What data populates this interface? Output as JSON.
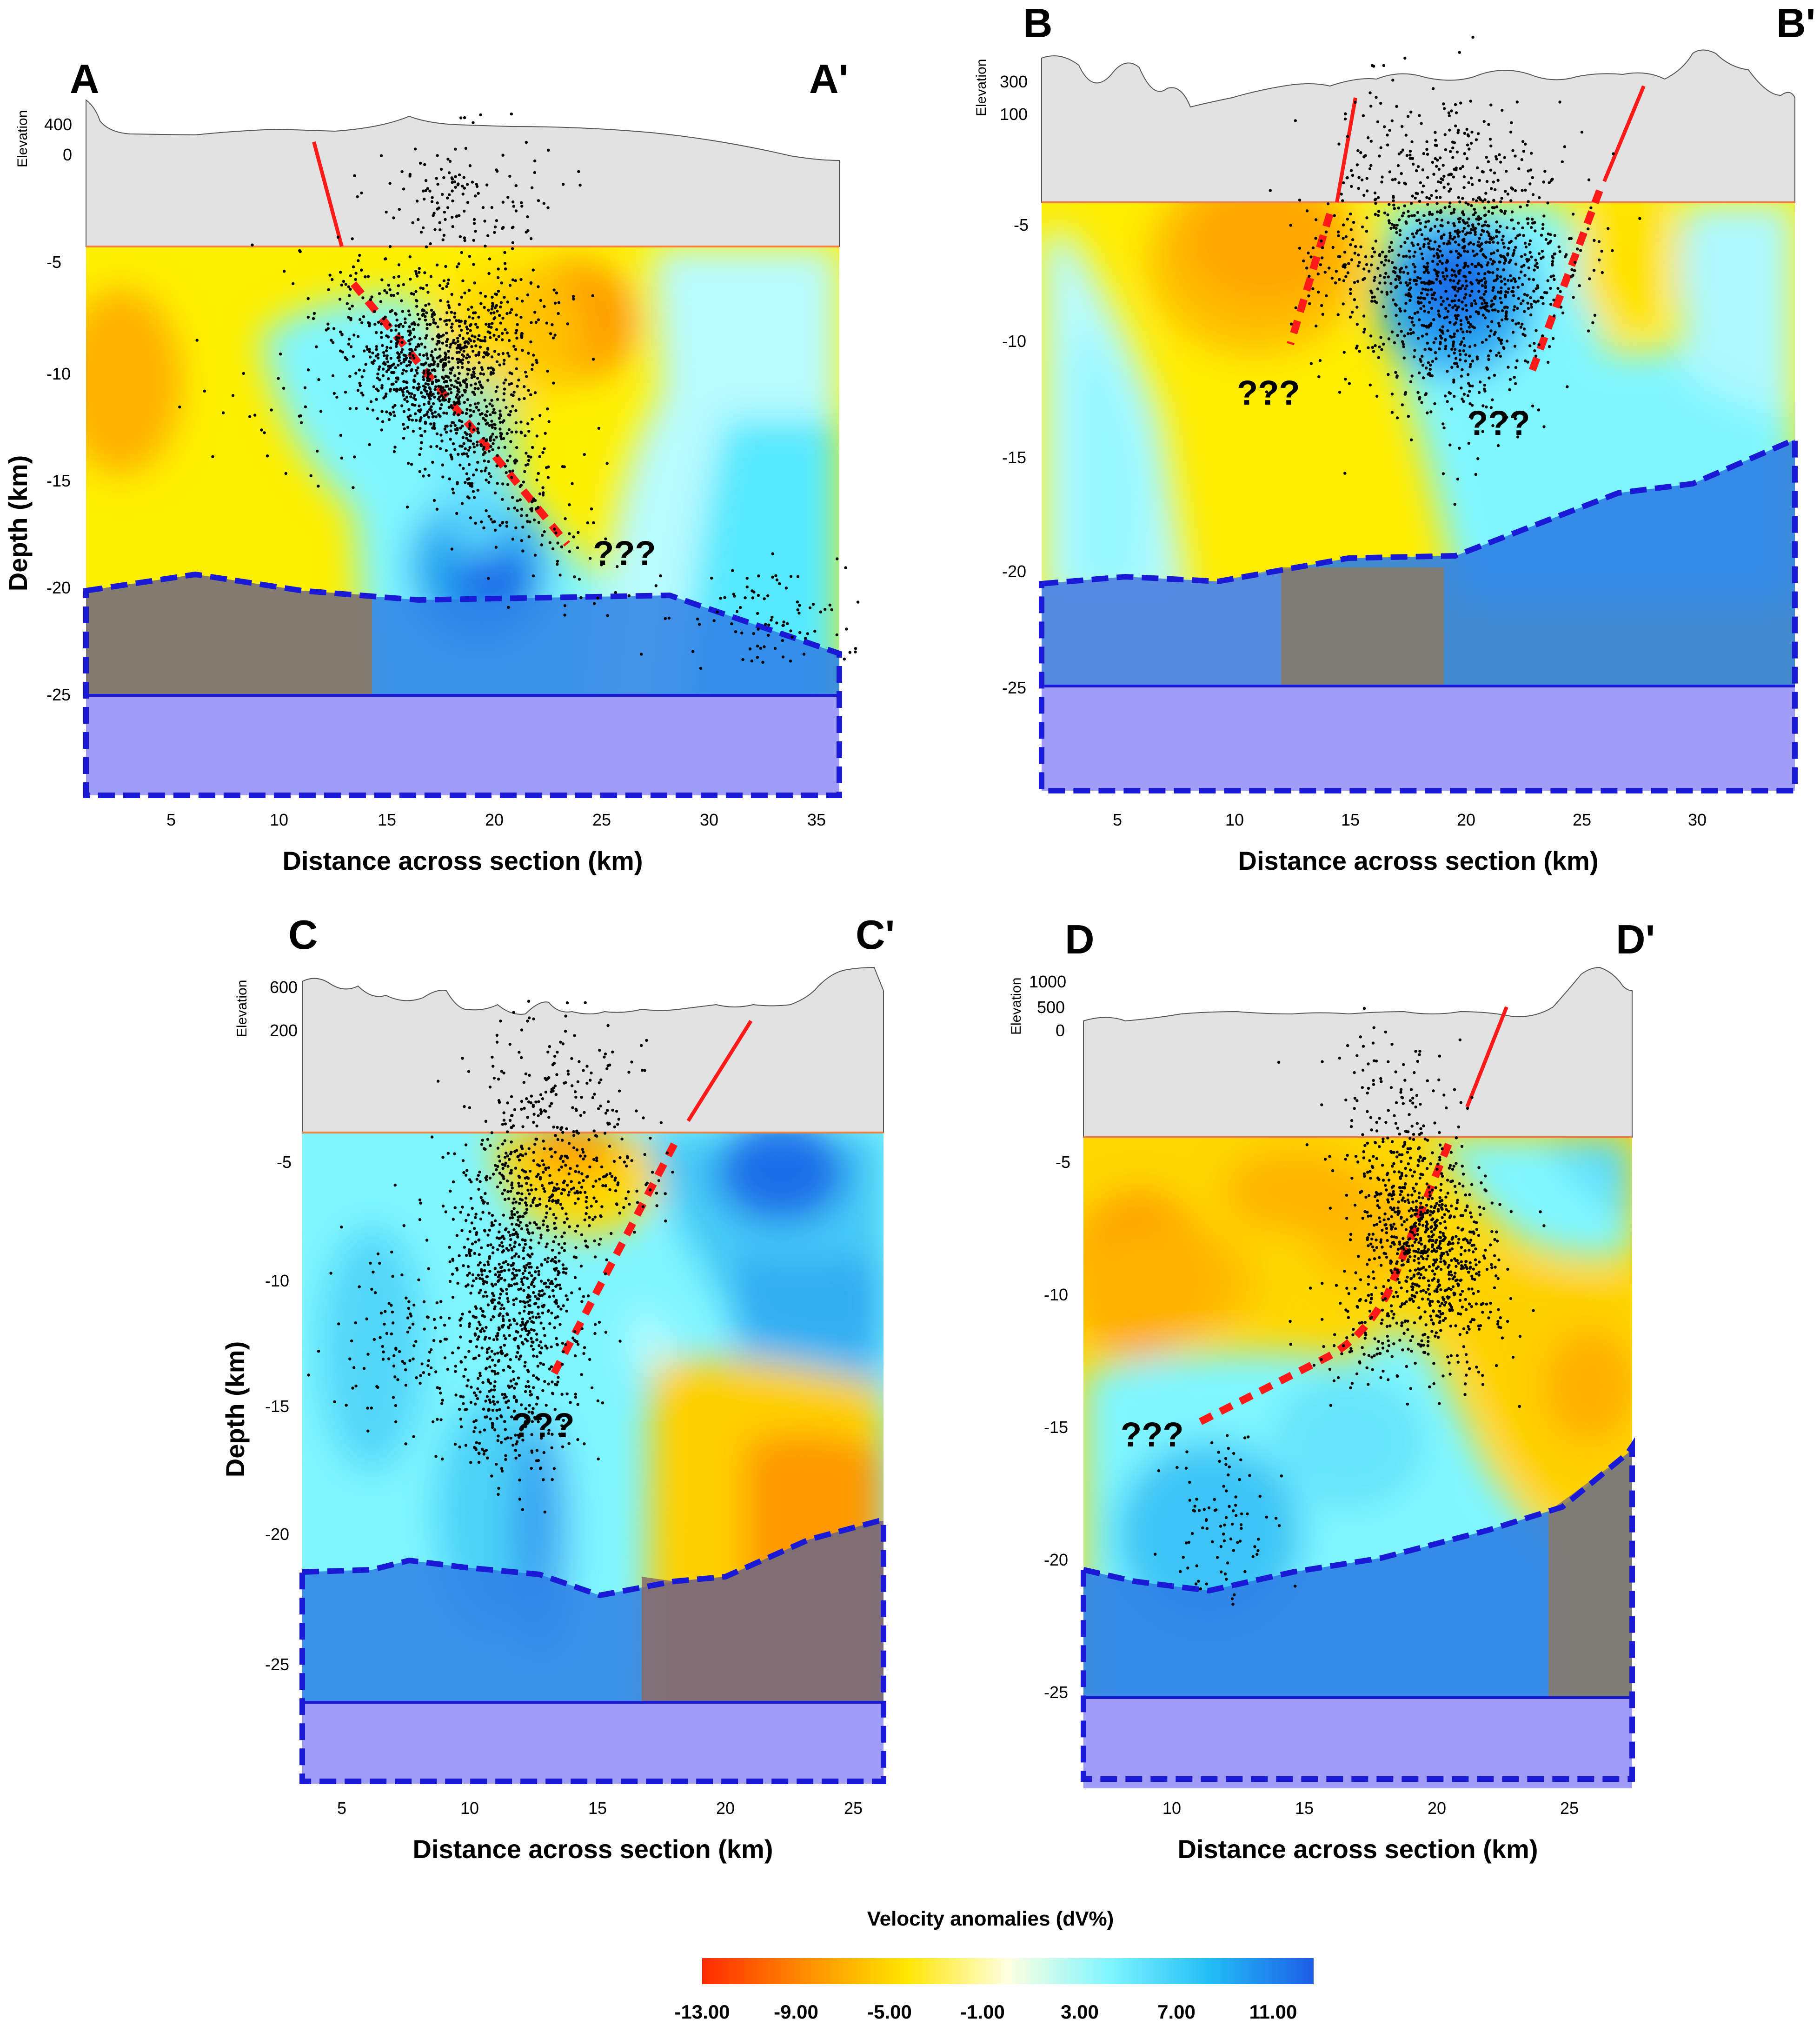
{
  "chart_data": [
    {
      "type": "heatmap",
      "panel": "A",
      "title_left": "A",
      "title_right": "A'",
      "xlabel": "Distance across section (km)",
      "ylabel": "Depth (km)",
      "elevation_label": "Elevation",
      "x_ticks": [
        "5",
        "10",
        "15",
        "20",
        "25",
        "30",
        "35"
      ],
      "y_ticks": [
        "-5",
        "-10",
        "-15",
        "-20",
        "-25"
      ],
      "elevation_ticks": [
        "400",
        "0"
      ],
      "annotation": "???",
      "xlim": [
        1,
        36.5
      ],
      "ylim": [
        -29.5,
        -3.9
      ]
    },
    {
      "type": "heatmap",
      "panel": "B",
      "title_left": "B",
      "title_right": "B'",
      "xlabel": "Distance across section (km)",
      "elevation_label": "Elevation",
      "x_ticks": [
        "5",
        "10",
        "15",
        "20",
        "25",
        "30"
      ],
      "y_ticks": [
        "-5",
        "-10",
        "-15",
        "-20",
        "-25"
      ],
      "elevation_ticks": [
        "300",
        "100"
      ],
      "annotations": [
        "???",
        "???"
      ],
      "xlim": [
        1.7,
        34.3
      ],
      "ylim": [
        -29.5,
        -4.0
      ]
    },
    {
      "type": "heatmap",
      "panel": "C",
      "title_left": "C",
      "title_right": "C'",
      "xlabel": "Distance across section (km)",
      "ylabel": "Depth (km)",
      "elevation_label": "Elevation",
      "x_ticks": [
        "5",
        "10",
        "15",
        "20",
        "25"
      ],
      "y_ticks": [
        "-5",
        "-10",
        "-15",
        "-20",
        "-25"
      ],
      "elevation_ticks": [
        "600",
        "200"
      ],
      "annotation": "???",
      "xlim": [
        3.5,
        26.2
      ],
      "ylim": [
        -29.5,
        -4.2
      ]
    },
    {
      "type": "heatmap",
      "panel": "D",
      "title_left": "D",
      "title_right": "D'",
      "xlabel": "Distance across section (km)",
      "elevation_label": "Elevation",
      "x_ticks": [
        "10",
        "15",
        "20",
        "25"
      ],
      "y_ticks": [
        "-5",
        "-10",
        "-15",
        "-20",
        "-25"
      ],
      "elevation_ticks": [
        "1000",
        "500",
        "0"
      ],
      "annotation": "???",
      "xlim": [
        6.5,
        27.3
      ],
      "ylim": [
        -28.4,
        -4.1
      ]
    },
    {
      "type": "colorbar",
      "title": "Velocity anomalies (dV%)",
      "tick_labels": [
        "-13.00",
        "-9.00",
        "-5.00",
        "-1.00",
        "3.00",
        "7.00",
        "11.00"
      ],
      "colors": [
        "#ff2a00",
        "#ff8c00",
        "#ffe600",
        "#ffffe0",
        "#7ff5ff",
        "#22bcf5",
        "#1e5de8"
      ]
    }
  ]
}
